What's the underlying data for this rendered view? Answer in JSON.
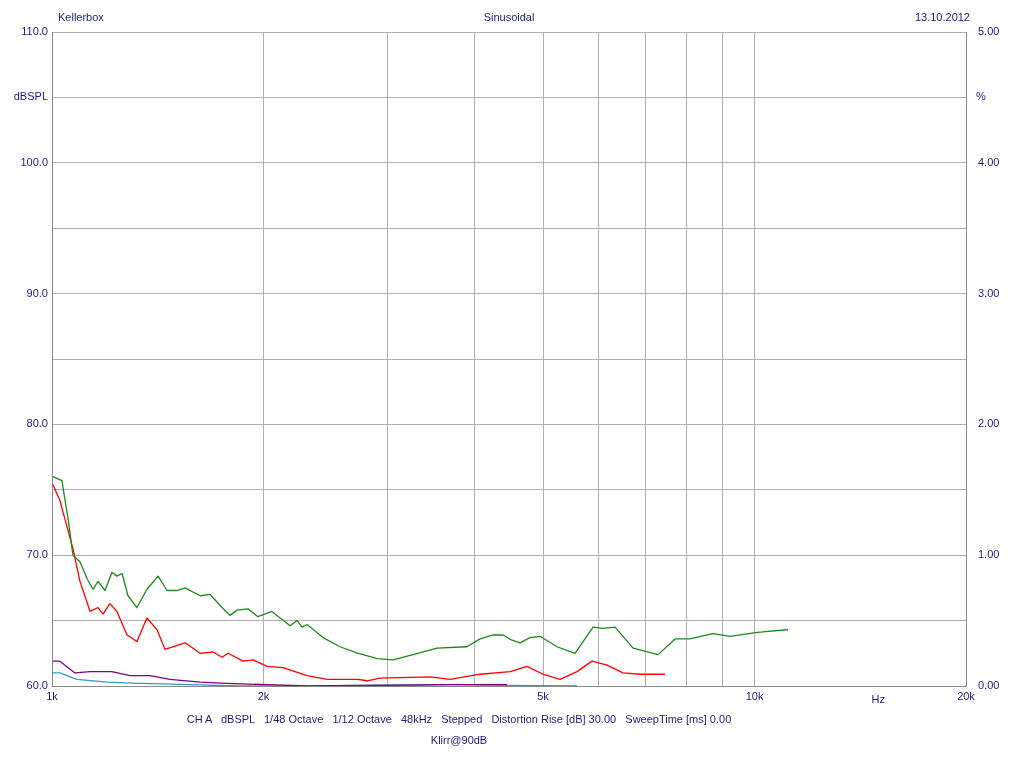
{
  "chart_data": {
    "type": "line",
    "title": "Sinusoidal",
    "xlabel": "Hz",
    "ylabel": "dBSPL",
    "y2label": "%",
    "annotations": [
      "Kellerbox",
      "13.10.2012",
      "CH A   dBSPL   1/48 Octave   1/12 Octave   48kHz   Stepped   Distortion Rise [dB] 30.00   SweepTime [ms] 0.00",
      "Klirr@90dB"
    ],
    "log": "x",
    "grid": true,
    "legend": false,
    "marker": "none",
    "line_style": "solid",
    "xlim": [
      1000,
      20000
    ],
    "xticks": [
      {
        "value": 1000,
        "label": "1k"
      },
      {
        "value": 2000,
        "label": "2k"
      },
      {
        "value": 3000,
        "label": null
      },
      {
        "value": 4000,
        "label": null
      },
      {
        "value": 5000,
        "label": "5k"
      },
      {
        "value": 6000,
        "label": null
      },
      {
        "value": 7000,
        "label": null
      },
      {
        "value": 8000,
        "label": null
      },
      {
        "value": 9000,
        "label": null
      },
      {
        "value": 10000,
        "label": "10k"
      },
      {
        "value": 20000,
        "label": "20k"
      }
    ],
    "ylim": [
      60,
      110
    ],
    "yticks": [
      {
        "value": 60,
        "label": "60.0"
      },
      {
        "value": 65,
        "label": null
      },
      {
        "value": 70,
        "label": "70.0"
      },
      {
        "value": 75,
        "label": null
      },
      {
        "value": 80,
        "label": "80.0"
      },
      {
        "value": 85,
        "label": null
      },
      {
        "value": 90,
        "label": "90.0"
      },
      {
        "value": 95,
        "label": null
      },
      {
        "value": 100,
        "label": "100.0"
      },
      {
        "value": 105,
        "label": null
      },
      {
        "value": 110,
        "label": "110.0"
      }
    ],
    "y2lim": [
      0,
      5
    ],
    "y2ticks": [
      {
        "value": 0,
        "label": "0.00"
      },
      {
        "value": 1,
        "label": "1.00"
      },
      {
        "value": 2,
        "label": "2.00"
      },
      {
        "value": 3,
        "label": "3.00"
      },
      {
        "value": 4,
        "label": "4.00"
      },
      {
        "value": 5,
        "label": "5.00"
      }
    ],
    "series": [
      {
        "color": "#1a8a1a",
        "axis": "y2",
        "x": [
          1003,
          1033,
          1054,
          1071,
          1096,
          1122,
          1144,
          1163,
          1190,
          1217,
          1237,
          1258,
          1283,
          1321,
          1365,
          1416,
          1458,
          1506,
          1547,
          1625,
          1679,
          1746,
          1792,
          1834,
          1901,
          1964,
          2056,
          2182,
          2233,
          2270,
          2307,
          2431,
          2570,
          2727,
          2772,
          2902,
          3059,
          3265,
          3532,
          3897,
          4068,
          4245,
          4385,
          4516,
          4636,
          4791,
          4951,
          5234,
          5552,
          5890,
          6088,
          6331,
          6717,
          7291,
          7708,
          8093,
          8728,
          9228,
          10082,
          11160
        ],
        "values": [
          1.6,
          1.57,
          1.28,
          1.0,
          0.95,
          0.82,
          0.74,
          0.8,
          0.73,
          0.87,
          0.84,
          0.86,
          0.69,
          0.6,
          0.74,
          0.84,
          0.73,
          0.73,
          0.75,
          0.69,
          0.7,
          0.6,
          0.54,
          0.58,
          0.59,
          0.53,
          0.57,
          0.46,
          0.5,
          0.45,
          0.47,
          0.37,
          0.3,
          0.25,
          0.24,
          0.21,
          0.2,
          0.24,
          0.29,
          0.3,
          0.36,
          0.39,
          0.39,
          0.35,
          0.33,
          0.37,
          0.38,
          0.3,
          0.25,
          0.45,
          0.44,
          0.45,
          0.29,
          0.24,
          0.36,
          0.36,
          0.4,
          0.38,
          0.41,
          0.43
        ]
      },
      {
        "color": "#ff0000",
        "axis": "y2",
        "x": [
          1003,
          1026,
          1071,
          1096,
          1133,
          1163,
          1182,
          1209,
          1237,
          1279,
          1321,
          1365,
          1411,
          1448,
          1547,
          1625,
          1695,
          1746,
          1781,
          1870,
          1932,
          2023,
          2132,
          2307,
          2463,
          2727,
          2808,
          2930,
          3452,
          3687,
          4068,
          4487,
          4744,
          5000,
          5286,
          5589,
          5870,
          6168,
          6500,
          6873,
          7460
        ],
        "values": [
          1.54,
          1.42,
          1.05,
          0.8,
          0.57,
          0.6,
          0.55,
          0.63,
          0.57,
          0.39,
          0.34,
          0.52,
          0.43,
          0.28,
          0.33,
          0.25,
          0.26,
          0.22,
          0.25,
          0.19,
          0.2,
          0.15,
          0.14,
          0.08,
          0.05,
          0.05,
          0.04,
          0.06,
          0.07,
          0.05,
          0.09,
          0.11,
          0.15,
          0.09,
          0.05,
          0.11,
          0.19,
          0.16,
          0.1,
          0.09,
          0.09
        ]
      },
      {
        "color": "#800080",
        "axis": "y2",
        "x": [
          1003,
          1026,
          1078,
          1133,
          1217,
          1291,
          1379,
          1472,
          1625,
          1775,
          2023,
          2307,
          3687,
          4443
        ],
        "values": [
          0.19,
          0.19,
          0.1,
          0.11,
          0.11,
          0.08,
          0.08,
          0.05,
          0.03,
          0.02,
          0.01,
          0,
          0.01,
          0.01
        ]
      },
      {
        "color": "#3399cc",
        "axis": "y2",
        "x": [
          1003,
          1026,
          1085,
          1198,
          1334,
          1573,
          1852,
          2307,
          3687,
          5589
        ],
        "values": [
          0.1,
          0.1,
          0.05,
          0.03,
          0.02,
          0.01,
          0,
          0,
          0.01,
          0
        ]
      }
    ]
  }
}
